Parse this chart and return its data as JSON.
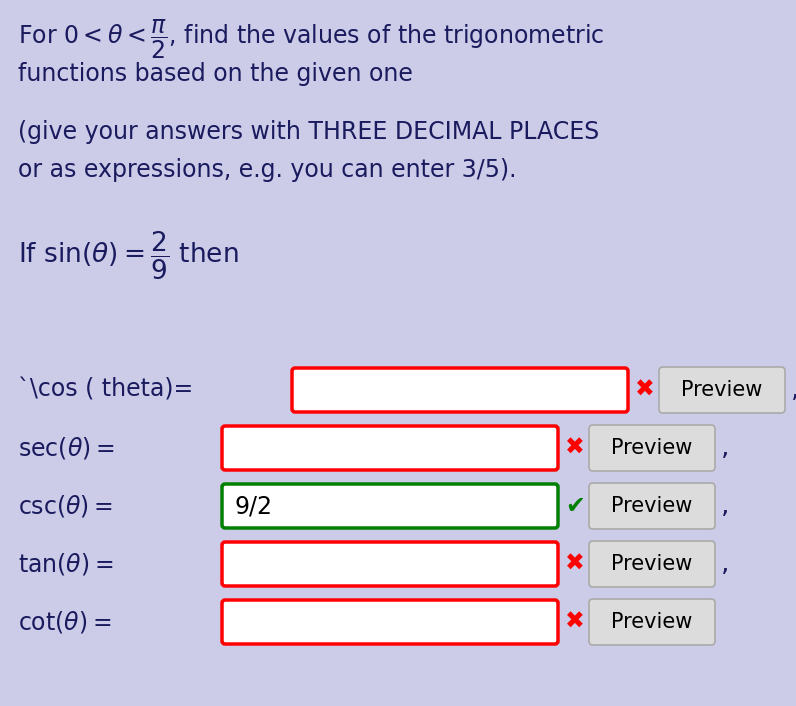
{
  "bg_color": "#cccce8",
  "text_color": "#1a1a5e",
  "fig_width": 7.96,
  "fig_height": 7.06,
  "dpi": 100,
  "font_size_title": 17,
  "font_size_row": 17,
  "font_size_preview": 15,
  "rows": [
    {
      "label": "`\\cos ( theta)=",
      "box_color": "red",
      "has_check": false,
      "value": "",
      "comma": true
    },
    {
      "label": "$\\sec(\\theta) =$",
      "box_color": "red",
      "has_check": false,
      "value": "",
      "comma": true
    },
    {
      "label": "$\\csc(\\theta) =$",
      "box_color": "green",
      "has_check": true,
      "value": "9/2",
      "comma": true
    },
    {
      "label": "$\\tan(\\theta) =$",
      "box_color": "red",
      "has_check": false,
      "value": "",
      "comma": true
    },
    {
      "label": "$\\cot(\\theta) =$",
      "box_color": "red",
      "has_check": false,
      "value": "",
      "comma": false
    }
  ]
}
